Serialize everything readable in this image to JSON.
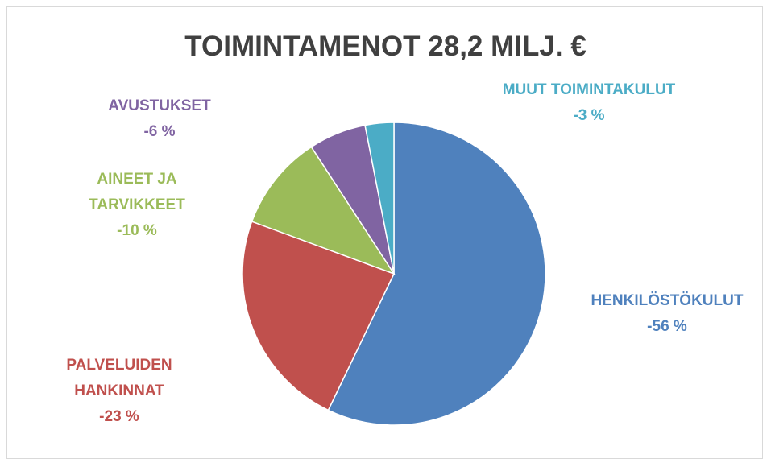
{
  "chart_data": {
    "type": "pie",
    "title": "TOIMINTAMENOT 28,2 MILJ. €",
    "categories": [
      "HENKILÖSTÖKULUT",
      "PALVELUIDEN HANKINNAT",
      "AINEET JA TARVIKKEET",
      "AVUSTUKSET",
      "MUUT TOIMINTAKULUT"
    ],
    "values": [
      -56,
      -23,
      -10,
      -6,
      -3
    ],
    "value_labels": [
      "-56 %",
      "-23 %",
      "-10 %",
      "-6 %",
      "-3 %"
    ],
    "colors": [
      "#4f81bd",
      "#c0504d",
      "#9bbb59",
      "#8064a2",
      "#4bacc6"
    ]
  }
}
